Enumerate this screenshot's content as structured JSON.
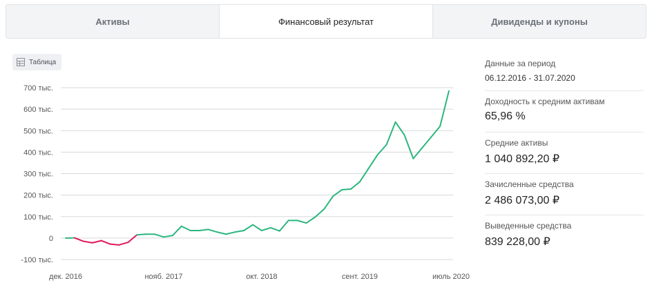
{
  "tabs": [
    {
      "label": "Активы",
      "active": false
    },
    {
      "label": "Финансовый результат",
      "active": true
    },
    {
      "label": "Дивиденды и купоны",
      "active": false
    }
  ],
  "table_button": {
    "label": "Таблица",
    "icon": "table-icon"
  },
  "stats": {
    "period_label": "Данные за период",
    "period_value": "06.12.2016 - 31.07.2020",
    "yield_label": "Доходность к средним активам",
    "yield_value": "65,96 %",
    "avg_assets_label": "Средние активы",
    "avg_assets_value": "1 040 892,20 ₽",
    "credited_label": "Зачисленные средства",
    "credited_value": "2 486 073,00 ₽",
    "withdrawn_label": "Выведенные средства",
    "withdrawn_value": "839 228,00 ₽"
  },
  "colors": {
    "positive": "#2bb67d",
    "negative": "#e0175a",
    "grid": "#d6d8dc"
  },
  "chart_data": {
    "type": "line",
    "title": "",
    "xlabel": "",
    "ylabel": "",
    "ylim": [
      -100000,
      700000
    ],
    "yticks": [
      700000,
      600000,
      500000,
      400000,
      300000,
      200000,
      100000,
      0,
      -100000
    ],
    "ytick_labels": [
      "700 тыс.",
      "600 тыс.",
      "500 тыс.",
      "400 тыс.",
      "300 тыс.",
      "200 тыс.",
      "100 тыс.",
      "0",
      "-100 тыс."
    ],
    "x_tick_labels": [
      "дек. 2016",
      "нояб. 2017",
      "окт. 2018",
      "сент. 2019",
      "июль 2020"
    ],
    "x_tick_index": [
      0,
      11,
      22,
      33,
      43
    ],
    "grid": true,
    "legend": "none",
    "series": [
      {
        "values": [
          0,
          1000,
          -15000,
          -22000,
          -12000,
          -28000,
          -32000,
          -20000,
          15000,
          18000,
          18000,
          5000,
          12000,
          55000,
          35000,
          35000,
          40000,
          28000,
          18000,
          28000,
          35000,
          62000,
          35000,
          48000,
          33000,
          82000,
          82000,
          70000,
          98000,
          135000,
          195000,
          225000,
          228000,
          262000,
          325000,
          388000,
          435000,
          540000,
          480000,
          370000,
          420000,
          470000,
          520000,
          685000
        ]
      }
    ]
  }
}
